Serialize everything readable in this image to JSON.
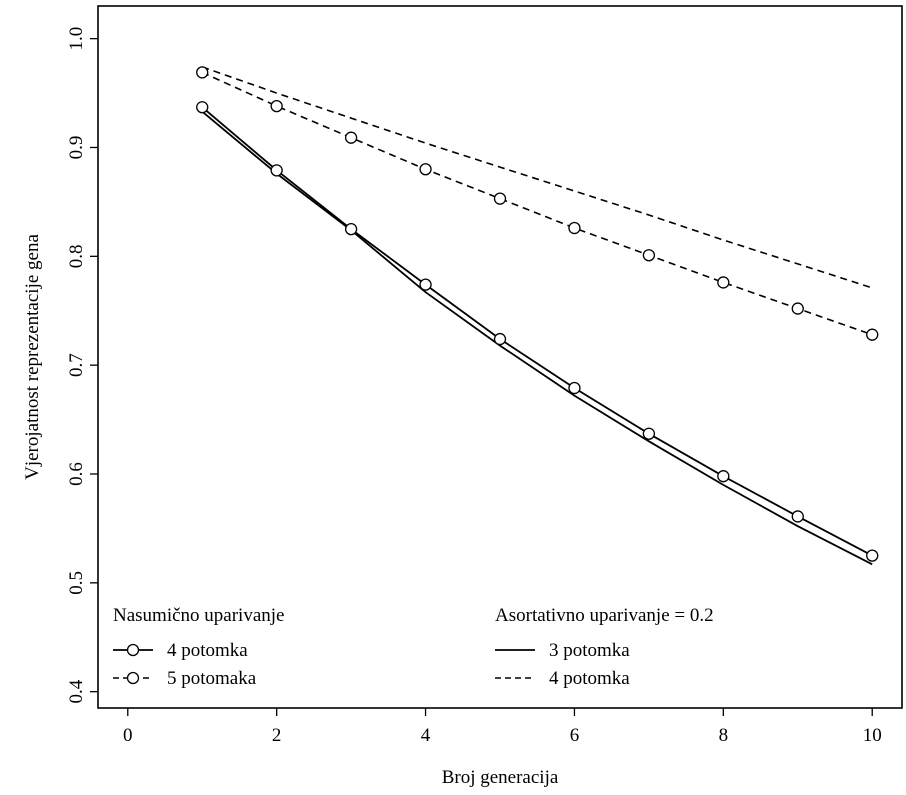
{
  "chart_data": {
    "type": "line",
    "title": "",
    "xlabel": "Broj generacija",
    "ylabel": "Vjerojatnost reprezentacije gena",
    "xlim": [
      -0.4,
      10.4
    ],
    "ylim": [
      0.385,
      1.03
    ],
    "xticks": [
      0,
      2,
      4,
      6,
      8,
      10
    ],
    "xtick_labels": [
      "0",
      "2",
      "4",
      "6",
      "8",
      "10"
    ],
    "yticks": [
      0.4,
      0.5,
      0.6,
      0.7,
      0.8,
      0.9,
      1.0
    ],
    "ytick_labels": [
      "0.4",
      "0.5",
      "0.6",
      "0.7",
      "0.8",
      "0.9",
      "1.0"
    ],
    "grid": false,
    "legends": [
      {
        "title": "Nasumično uparivanje",
        "placement": "bottom-left",
        "entries": [
          {
            "label": "4 potomka",
            "series": 0
          },
          {
            "label": "5 potomaka",
            "series": 1
          }
        ]
      },
      {
        "title": "Asortativno uparivanje = 0.2",
        "placement": "bottom-center",
        "entries": [
          {
            "label": "3 potomka",
            "series": 2
          },
          {
            "label": "4 potomka",
            "series": 3
          }
        ]
      }
    ],
    "series": [
      {
        "name": "4 potomka",
        "group": "Nasumično uparivanje",
        "style": "solid",
        "markers": "open-circle",
        "x": [
          1,
          2,
          3,
          4,
          5,
          6,
          7,
          8,
          9,
          10
        ],
        "y": [
          0.937,
          0.879,
          0.825,
          0.774,
          0.724,
          0.679,
          0.637,
          0.598,
          0.561,
          0.525
        ]
      },
      {
        "name": "5 potomaka",
        "group": "Nasumično uparivanje",
        "style": "dashed",
        "markers": "open-circle",
        "x": [
          1,
          2,
          3,
          4,
          5,
          6,
          7,
          8,
          9,
          10
        ],
        "y": [
          0.969,
          0.938,
          0.909,
          0.88,
          0.853,
          0.826,
          0.801,
          0.776,
          0.752,
          0.728
        ]
      },
      {
        "name": "3 potomka",
        "group": "Asortativno uparivanje = 0.2",
        "style": "solid",
        "markers": "none",
        "x": [
          1,
          2,
          3,
          4,
          5,
          6,
          7,
          8,
          9,
          10
        ],
        "y": [
          0.933,
          0.876,
          0.824,
          0.767,
          0.718,
          0.672,
          0.63,
          0.59,
          0.552,
          0.517
        ]
      },
      {
        "name": "4 potomka",
        "group": "Asortativno uparivanje = 0.2",
        "style": "dashed",
        "markers": "none",
        "x": [
          1,
          2,
          3,
          4,
          5,
          6,
          7,
          8,
          9,
          10
        ],
        "y": [
          0.974,
          0.95,
          0.927,
          0.904,
          0.882,
          0.86,
          0.838,
          0.815,
          0.793,
          0.771
        ]
      }
    ]
  }
}
